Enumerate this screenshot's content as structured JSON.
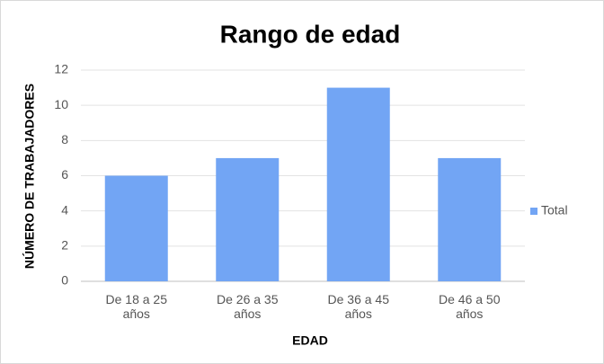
{
  "chart_data": {
    "type": "bar",
    "title": "Rango de edad",
    "x_label": "EDAD",
    "y_label": "NÚMERO DE TRABAJADORES",
    "categories": [
      "De 18 a 25 años",
      "De 26 a 35 años",
      "De 36 a 45 años",
      "De 46 a 50 años"
    ],
    "series": [
      {
        "name": "Total",
        "color": "#72a5f4",
        "values": [
          6,
          7,
          11,
          7
        ]
      }
    ],
    "ylim": [
      0,
      12
    ],
    "yticks": [
      0,
      2,
      4,
      6,
      8,
      10,
      12
    ],
    "grid": true,
    "legend": "right"
  }
}
